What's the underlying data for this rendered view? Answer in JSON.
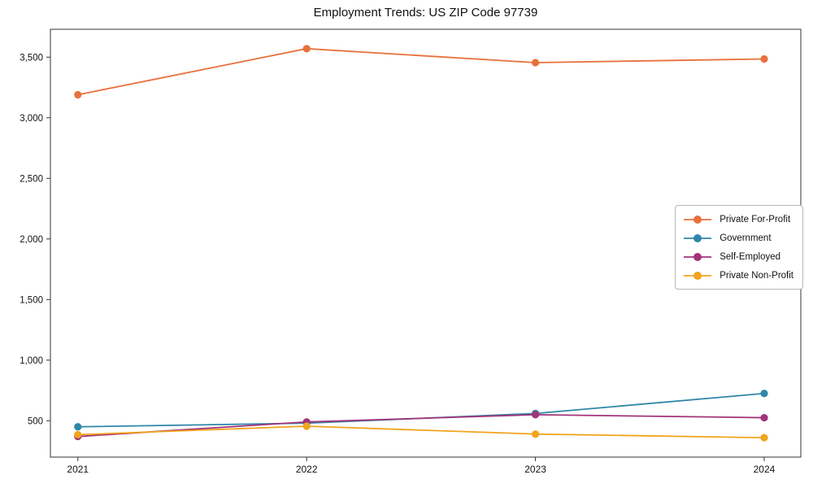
{
  "chart_data": {
    "type": "line",
    "title": "Employment Trends: US ZIP Code 97739",
    "x": [
      2021,
      2022,
      2023,
      2024
    ],
    "x_tick_labels": [
      "2021",
      "2022",
      "2023",
      "2024"
    ],
    "series": [
      {
        "name": "Private For-Profit",
        "color": "#e8713c",
        "values": [
          3190,
          3570,
          3455,
          3485
        ]
      },
      {
        "name": "Government",
        "color": "#2e86a8",
        "values": [
          450,
          480,
          560,
          725
        ]
      },
      {
        "name": "Self-Employed",
        "color": "#a23479",
        "values": [
          370,
          490,
          550,
          525
        ]
      },
      {
        "name": "Private Non-Profit",
        "color": "#f2a41d",
        "values": [
          385,
          455,
          390,
          360
        ]
      }
    ],
    "xlim": [
      2020.88,
      2024.16
    ],
    "ylim": [
      200,
      3730
    ],
    "yticks": [
      500,
      1000,
      1500,
      2000,
      2500,
      3000,
      3500
    ],
    "ytick_labels": [
      "500",
      "1,000",
      "1,500",
      "2,000",
      "2,500",
      "3,000",
      "3,500"
    ],
    "grid": false,
    "legend_position": "right-center",
    "marker": "circle",
    "axis_color": "#333333"
  }
}
